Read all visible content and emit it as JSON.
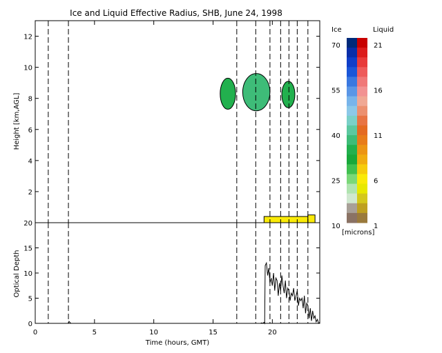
{
  "chart_data": [
    {
      "type": "heatmap",
      "title": "Ice and Liquid Effective Radius, SHB, June 24, 1998",
      "ylabel": "Height [km,AGL]",
      "xlim": [
        0,
        24
      ],
      "ylim": [
        0,
        13
      ],
      "yticks": [
        0,
        2,
        4,
        6,
        8,
        10,
        12
      ],
      "vertical_dashed_lines": [
        1.1,
        2.8,
        17.0,
        18.6,
        19.8,
        20.7,
        21.4,
        22.1,
        23.0
      ],
      "ice_features": [
        {
          "time_start": 15.6,
          "time_end": 16.9,
          "height_bottom": 7.3,
          "height_top": 9.3,
          "value": 32
        },
        {
          "time_start": 17.5,
          "time_end": 19.8,
          "height_bottom": 7.2,
          "height_top": 9.6,
          "value": 38
        },
        {
          "time_start": 20.8,
          "time_end": 21.9,
          "height_bottom": 7.4,
          "height_top": 9.1,
          "value": 33
        }
      ],
      "liquid_features": [
        {
          "time_start": 19.3,
          "time_end": 23.0,
          "height_bottom": 0.0,
          "height_top": 0.4,
          "value": 6
        },
        {
          "time_start": 23.0,
          "time_end": 23.6,
          "height_bottom": 0.0,
          "height_top": 0.5,
          "value": 5
        }
      ],
      "colorbar": {
        "ice_label": "Ice",
        "liquid_label": "Liquid",
        "units": "[microns]",
        "ice_ticks": [
          "70",
          "55",
          "40",
          "25",
          "10"
        ],
        "liquid_ticks": [
          "21",
          "16",
          "11",
          "6",
          "1"
        ],
        "ice_colors": [
          "#002a7a",
          "#0a2ea8",
          "#0f3ec8",
          "#1a56d8",
          "#3a78e0",
          "#5a96e6",
          "#78b4ea",
          "#8cc8e8",
          "#7ad0c8",
          "#5cc8a0",
          "#3ebc78",
          "#22b04e",
          "#18a83a",
          "#40c050",
          "#7ad878",
          "#b0e4b0",
          "#d0e8d0",
          "#a8a098",
          "#8a7264"
        ],
        "liquid_colors": [
          "#c80000",
          "#dc1c1c",
          "#e83a3a",
          "#ee5a5a",
          "#f07878",
          "#f29292",
          "#f0a894",
          "#ec9070",
          "#e87444",
          "#e46a22",
          "#e87c1a",
          "#ec9414",
          "#f0ac10",
          "#f6cc0c",
          "#faea08",
          "#e8e800",
          "#d4c81c",
          "#bea020",
          "#9a7a3c"
        ]
      }
    },
    {
      "type": "line",
      "xlabel": "Time (hours, GMT)",
      "ylabel": "Optical Depth",
      "xlim": [
        0,
        24
      ],
      "ylim": [
        0,
        20
      ],
      "xticks": [
        0,
        5,
        10,
        15,
        20
      ],
      "yticks": [
        0,
        5,
        10,
        15,
        20
      ],
      "vertical_dashed_lines": [
        1.1,
        2.8,
        17.0,
        18.6,
        19.8,
        20.7,
        21.4,
        22.1,
        23.0
      ],
      "series": [
        {
          "x": [
            2.8,
            2.85,
            3.0,
            15.5,
            16.5,
            17.5,
            18.5,
            19.0,
            19.1,
            19.2,
            19.3,
            19.35,
            19.4,
            19.5,
            19.6,
            19.7,
            19.8,
            19.9,
            20.0,
            20.1,
            20.2,
            20.3,
            20.4,
            20.5,
            20.6,
            20.7,
            20.8,
            20.9,
            21.0,
            21.1,
            21.2,
            21.3,
            21.4,
            21.5,
            21.6,
            21.7,
            21.8,
            21.9,
            22.0,
            22.1,
            22.2,
            22.3,
            22.4,
            22.5,
            22.6,
            22.7,
            22.8,
            22.9,
            23.0,
            23.1,
            23.2,
            23.3,
            23.4,
            23.5,
            23.6,
            23.7,
            23.8,
            23.9,
            24.0
          ],
          "y": [
            0.0,
            0.4,
            0.0,
            0.0,
            0.0,
            0.0,
            0.0,
            0.0,
            0.1,
            0.0,
            0.2,
            0.0,
            11.5,
            12.0,
            9.5,
            11.0,
            8.0,
            9.0,
            7.5,
            10.0,
            6.5,
            9.0,
            8.5,
            5.5,
            8.0,
            6.5,
            9.5,
            7.5,
            6.0,
            8.5,
            5.0,
            7.0,
            6.5,
            4.5,
            6.0,
            5.5,
            7.0,
            4.5,
            5.5,
            6.5,
            3.5,
            5.0,
            4.5,
            5.0,
            3.0,
            5.5,
            2.0,
            4.0,
            3.5,
            1.0,
            3.0,
            0.5,
            2.5,
            1.0,
            1.5,
            0.3,
            0.8,
            0.0,
            0.2
          ]
        }
      ]
    }
  ]
}
